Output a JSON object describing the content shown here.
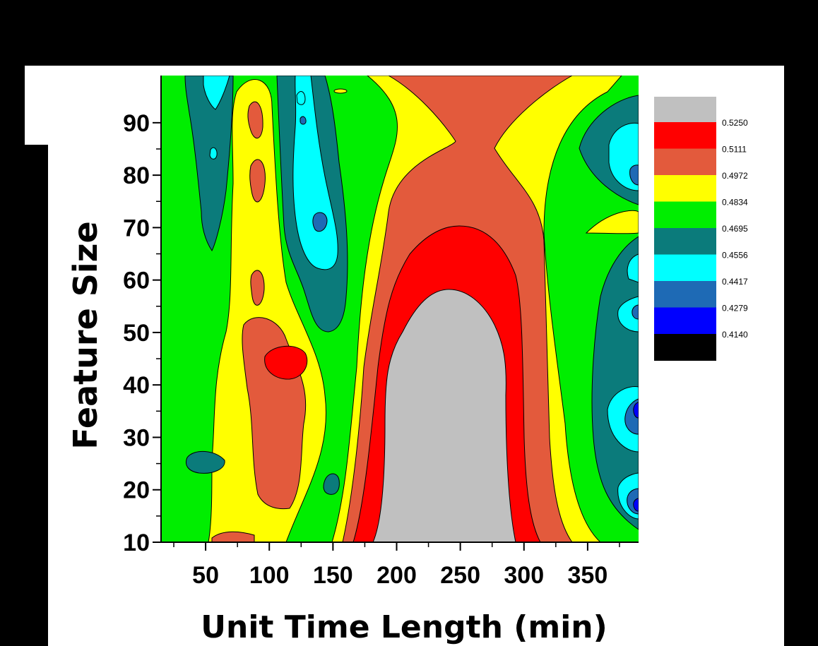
{
  "chart_data": {
    "type": "heatmap",
    "subtype": "filled-contour",
    "xlabel": "Unit Time Length (min)",
    "ylabel": "Feature Size",
    "x_ticks": [
      50,
      100,
      150,
      200,
      250,
      300,
      350
    ],
    "y_ticks": [
      10,
      20,
      30,
      40,
      50,
      60,
      70,
      80,
      90
    ],
    "xlim": [
      15,
      390
    ],
    "ylim": [
      10,
      99
    ],
    "grid": false,
    "legend_position": "right",
    "contour_levels": [
      {
        "value": "0.5250",
        "color": "#ff0000"
      },
      {
        "value": "0.5111",
        "color": "#e35a3c"
      },
      {
        "value": "0.4972",
        "color": "#ffff00"
      },
      {
        "value": "0.4834",
        "color": "#00ee00"
      },
      {
        "value": "0.4695",
        "color": "#0b7b7b"
      },
      {
        "value": "0.4556",
        "color": "#00ffff"
      },
      {
        "value": "0.4417",
        "color": "#1e6ab5"
      },
      {
        "value": "0.4279",
        "color": "#0000ff"
      },
      {
        "value": "0.4140",
        "color": "#000000"
      }
    ],
    "above_max_color": "#c0c0c0",
    "regions": [
      {
        "level": "0.5250+",
        "color": "#c0c0c0",
        "x_range": [
          185,
          290
        ],
        "y_range": [
          10,
          58
        ]
      },
      {
        "level": "0.5111-0.5250",
        "color": "#ff0000",
        "x_range": [
          170,
          315
        ],
        "y_range": [
          10,
          70
        ]
      },
      {
        "level": "0.5111-0.5250",
        "color": "#ff0000",
        "x_range": [
          100,
          125
        ],
        "y_range": [
          42,
          47
        ]
      },
      {
        "level": "0.4972-0.5111",
        "color": "#e35a3c",
        "x_range": [
          145,
          340
        ],
        "y_range": [
          10,
          99
        ]
      },
      {
        "level": "0.4972-0.5111",
        "color": "#e35a3c",
        "x_range": [
          75,
          135
        ],
        "y_range": [
          16,
          53
        ]
      },
      {
        "level": "0.4695-0.4834",
        "color": "#0b7b7b",
        "x_range": [
          25,
          80
        ],
        "y_range": [
          65,
          99
        ]
      },
      {
        "level": "0.4695-0.4834",
        "color": "#0b7b7b",
        "x_range": [
          105,
          155
        ],
        "y_range": [
          50,
          99
        ]
      },
      {
        "level": "0.4695-0.4834",
        "color": "#0b7b7b",
        "x_range": [
          355,
          390
        ],
        "y_range": [
          12,
          85
        ]
      },
      {
        "level": "0.4556-0.4695",
        "color": "#00ffff",
        "x_range": [
          115,
          145
        ],
        "y_range": [
          60,
          99
        ]
      },
      {
        "level": "0.4556-0.4695",
        "color": "#00ffff",
        "x_range": [
          370,
          390
        ],
        "y_range": [
          15,
          90
        ]
      }
    ]
  }
}
